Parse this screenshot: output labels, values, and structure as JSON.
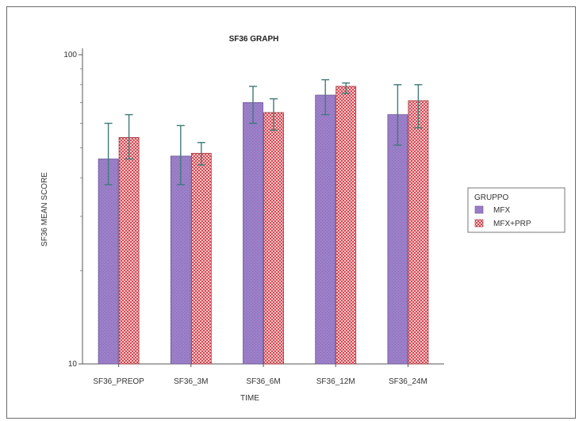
{
  "chart_data": {
    "type": "bar",
    "title": "SF36 GRAPH",
    "xlabel": "TIME",
    "ylabel": "SF36 MEAN SCORE",
    "yscale": "log",
    "ylim": [
      10,
      100
    ],
    "yticks": [
      "10",
      "100"
    ],
    "categories": [
      "SF36_PREOP",
      "SF36_3M",
      "SF36_6M",
      "SF36_12M",
      "SF36_24M"
    ],
    "legend_title": "GRUPPO",
    "legend_position": "right",
    "grid": false,
    "series": [
      {
        "name": "MFX",
        "color": "#9b7fc8",
        "values": [
          46,
          47,
          70,
          74,
          64
        ],
        "error_low": [
          38,
          38,
          60,
          64,
          51
        ],
        "error_high": [
          60,
          59,
          79,
          83,
          80
        ]
      },
      {
        "name": "MFX+PRP",
        "color": "#d9464f",
        "values": [
          54,
          48,
          65,
          79,
          71
        ],
        "error_low": [
          46,
          44,
          57,
          75,
          58
        ],
        "error_high": [
          64,
          52,
          72,
          81,
          80
        ]
      }
    ]
  }
}
